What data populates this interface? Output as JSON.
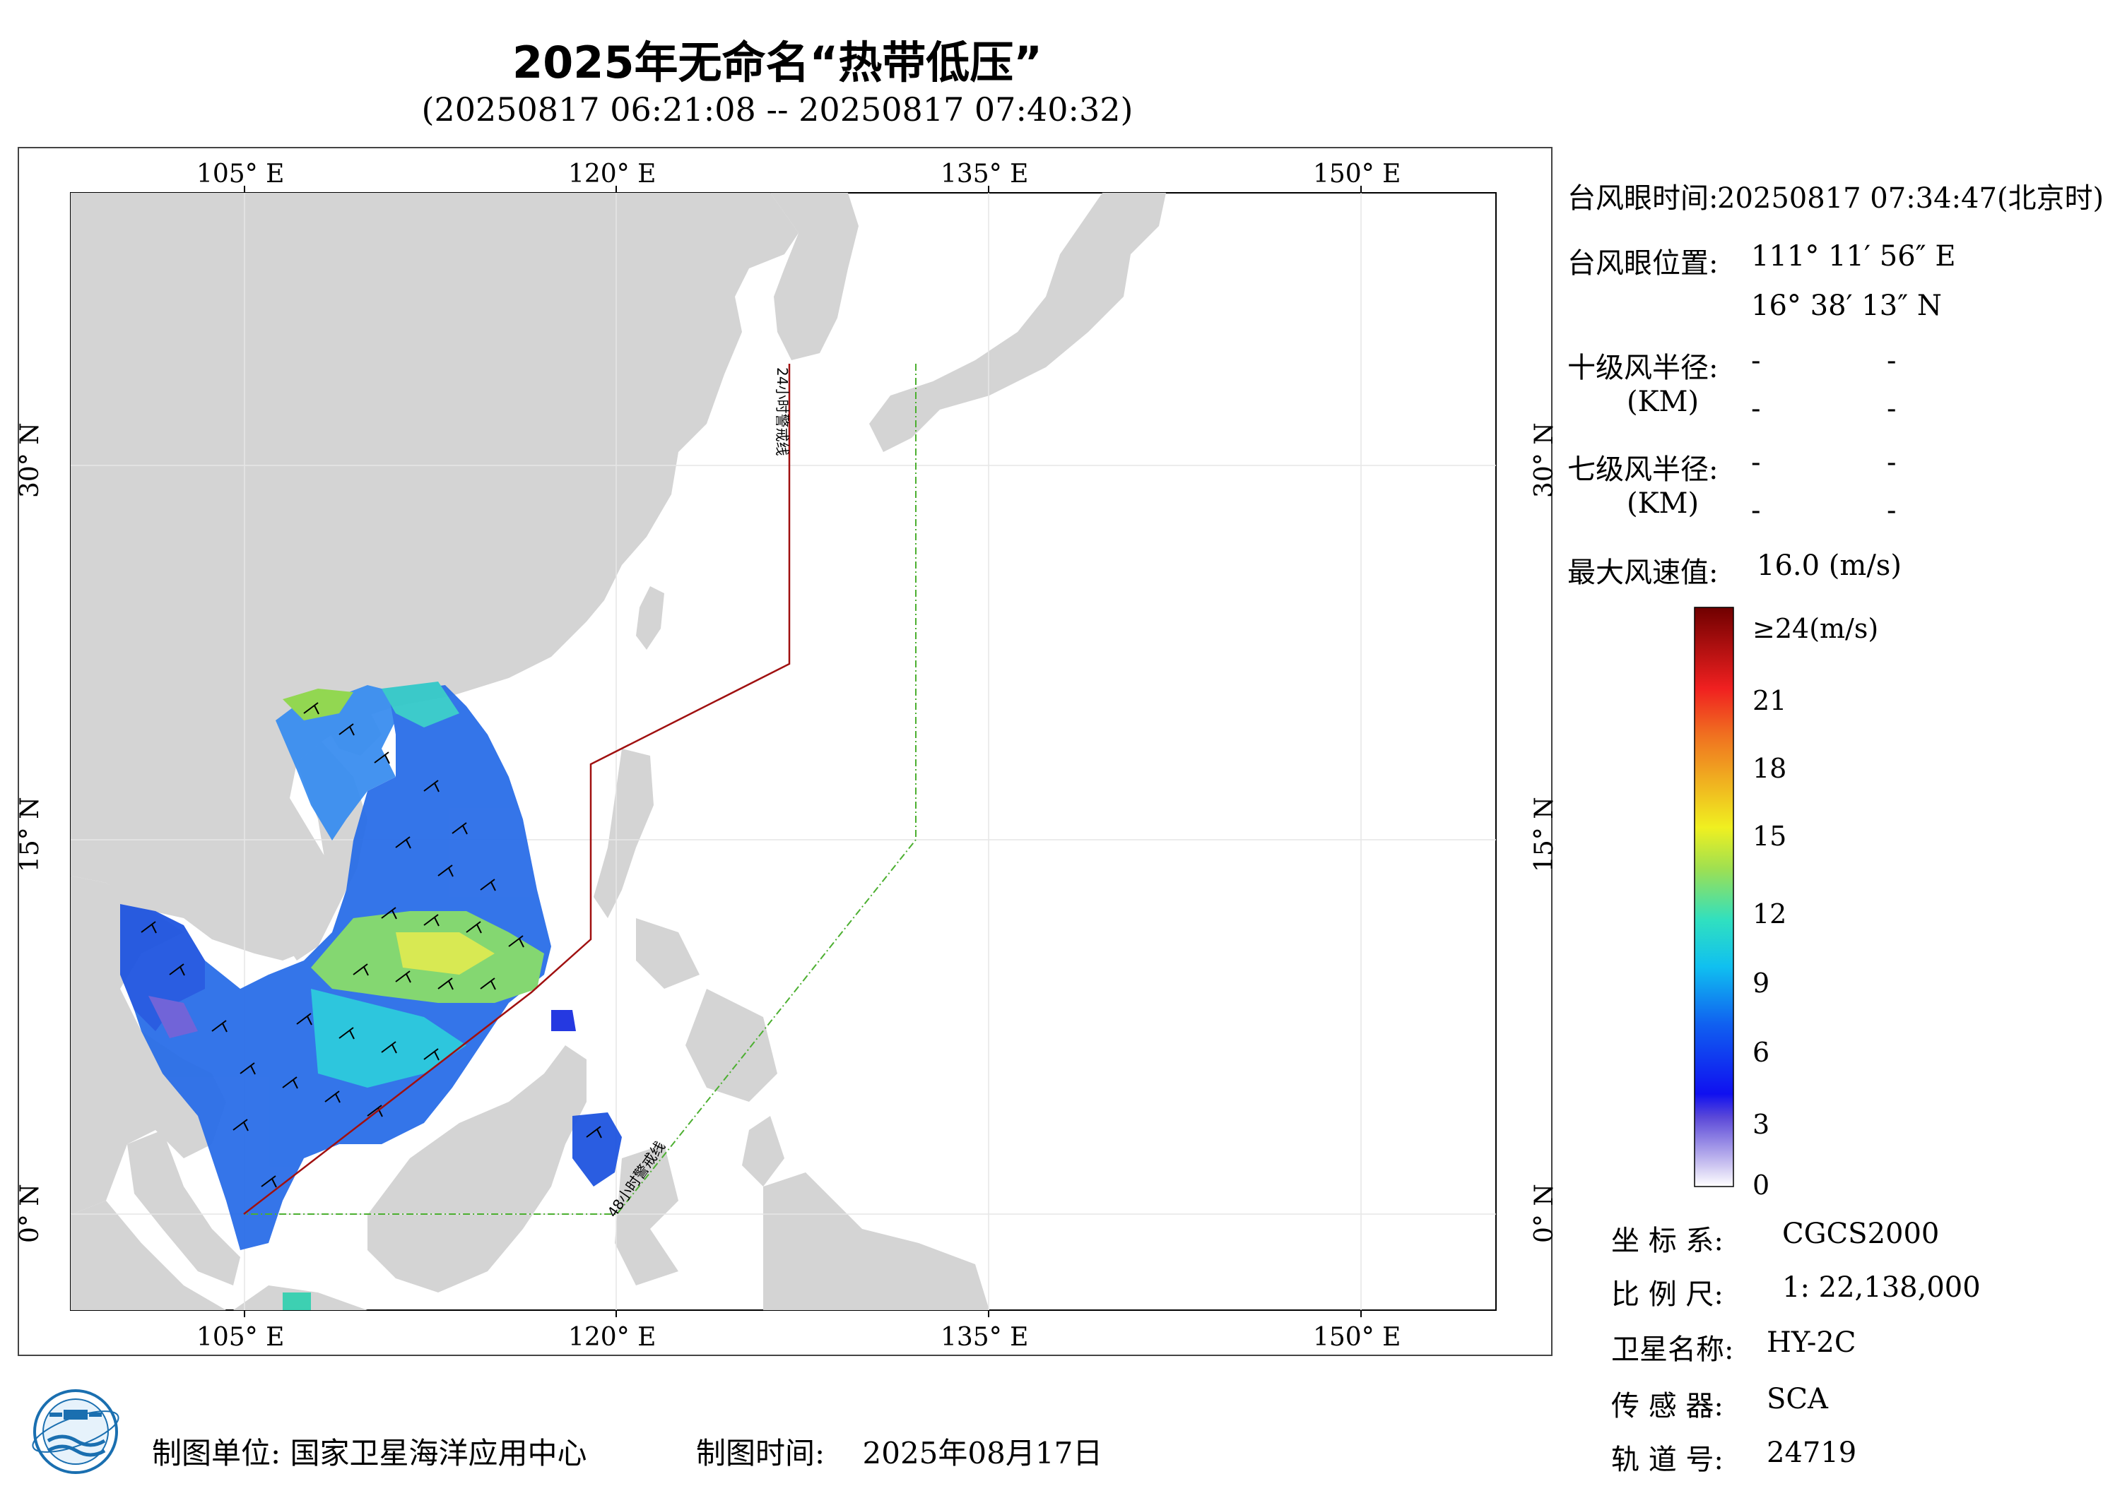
{
  "title": "2025年无命名“热带低压”",
  "subtitle": "(20250817 06:21:08 -- 20250817 07:40:32)",
  "map": {
    "lon_ticks": [
      "105° E",
      "120° E",
      "135° E",
      "150° E"
    ],
    "lat_ticks": [
      "30° N",
      "15° N",
      "0° N"
    ],
    "warning_24h": "24小时警戒线",
    "warning_48h": "48小时警戒线",
    "land_color": "#d4d4d4",
    "ocean_color": "#ffffff",
    "warning_24h_color": "#a01010",
    "warning_48h_color": "#4caf30"
  },
  "info": {
    "eye_time_label": "台风眼时间:",
    "eye_time_value": "20250817 07:34:47(北京时)",
    "eye_pos_label": "台风眼位置:",
    "eye_lon": "111° 11′ 56″ E",
    "eye_lat": "16° 38′ 13″ N",
    "r10_label": "十级风半径:",
    "r7_label": "七级风半径:",
    "km_label": "(KM)",
    "dash": "-",
    "max_wind_label": "最大风速值:",
    "max_wind_value": "16.0  (m/s)"
  },
  "colorbar": {
    "labels": [
      "≥24(m/s)",
      "21",
      "18",
      "15",
      "12",
      "9",
      "6",
      "3",
      "0"
    ]
  },
  "meta": {
    "crs_label": "坐 标 系:",
    "crs_value": "CGCS2000",
    "scale_label": "比 例 尺:",
    "scale_value": "1: 22,138,000",
    "sat_label": "卫星名称:",
    "sat_value": "HY-2C",
    "sensor_label": "传 感 器:",
    "sensor_value": "SCA",
    "orbit_label": "轨 道 号:",
    "orbit_value": "24719"
  },
  "footer": {
    "maker_label": "制图单位:",
    "maker_value": "国家卫星海洋应用中心",
    "time_label": "制图时间:",
    "time_value": "2025年08月17日"
  }
}
